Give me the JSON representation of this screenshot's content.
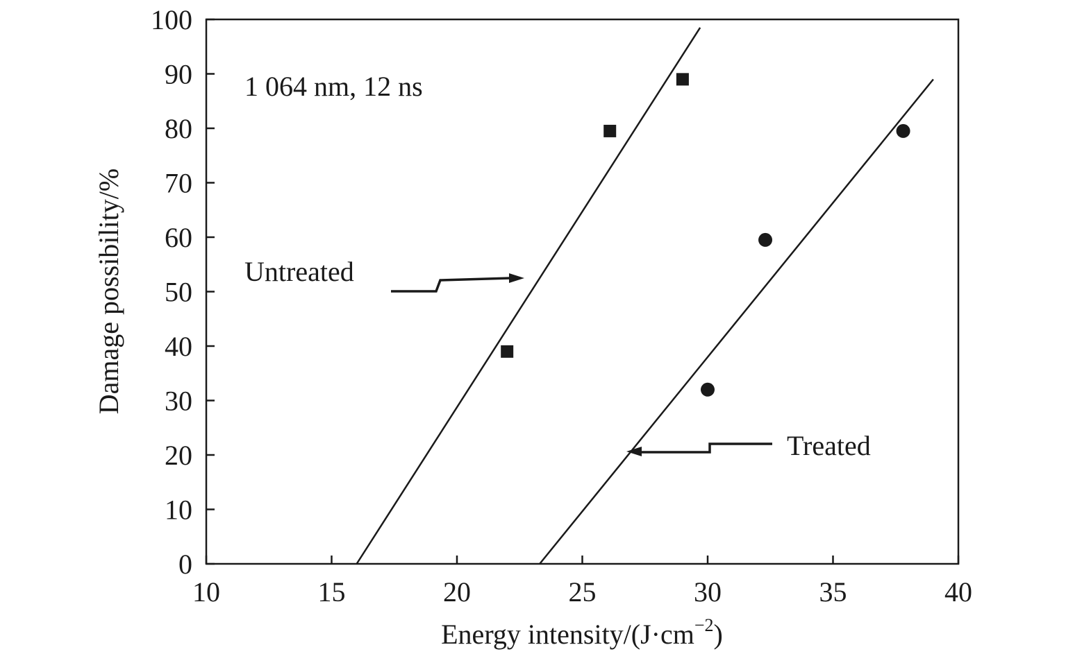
{
  "chart_data": {
    "type": "scatter",
    "title": "",
    "annotation": "1 064 nm, 12 ns",
    "xlabel": "Energy intensity/(J·cm",
    "xlabel_sup": "−2",
    "xlabel_end": ")",
    "ylabel": "Damage possibility/%",
    "xlim": [
      10,
      40
    ],
    "ylim": [
      0,
      100
    ],
    "x_ticks": [
      "10",
      "15",
      "20",
      "25",
      "30",
      "35",
      "40"
    ],
    "y_ticks": [
      "0",
      "10",
      "20",
      "30",
      "40",
      "50",
      "60",
      "70",
      "80",
      "90",
      "100"
    ],
    "grid": false,
    "series": [
      {
        "name": "Untreated",
        "marker": "square",
        "points": [
          {
            "x": 22.0,
            "y": 39
          },
          {
            "x": 26.1,
            "y": 79.5
          },
          {
            "x": 29.0,
            "y": 89
          }
        ],
        "fit_line": [
          {
            "x": 16.0,
            "y": 0
          },
          {
            "x": 29.7,
            "y": 98.5
          }
        ]
      },
      {
        "name": "Treated",
        "marker": "circle",
        "points": [
          {
            "x": 30.0,
            "y": 32
          },
          {
            "x": 32.3,
            "y": 59.5
          },
          {
            "x": 37.8,
            "y": 79.5
          }
        ],
        "fit_line": [
          {
            "x": 23.3,
            "y": 0
          },
          {
            "x": 39.0,
            "y": 89
          }
        ]
      }
    ],
    "colors": {
      "ink": "#1a1a1a",
      "background": "#ffffff"
    }
  }
}
